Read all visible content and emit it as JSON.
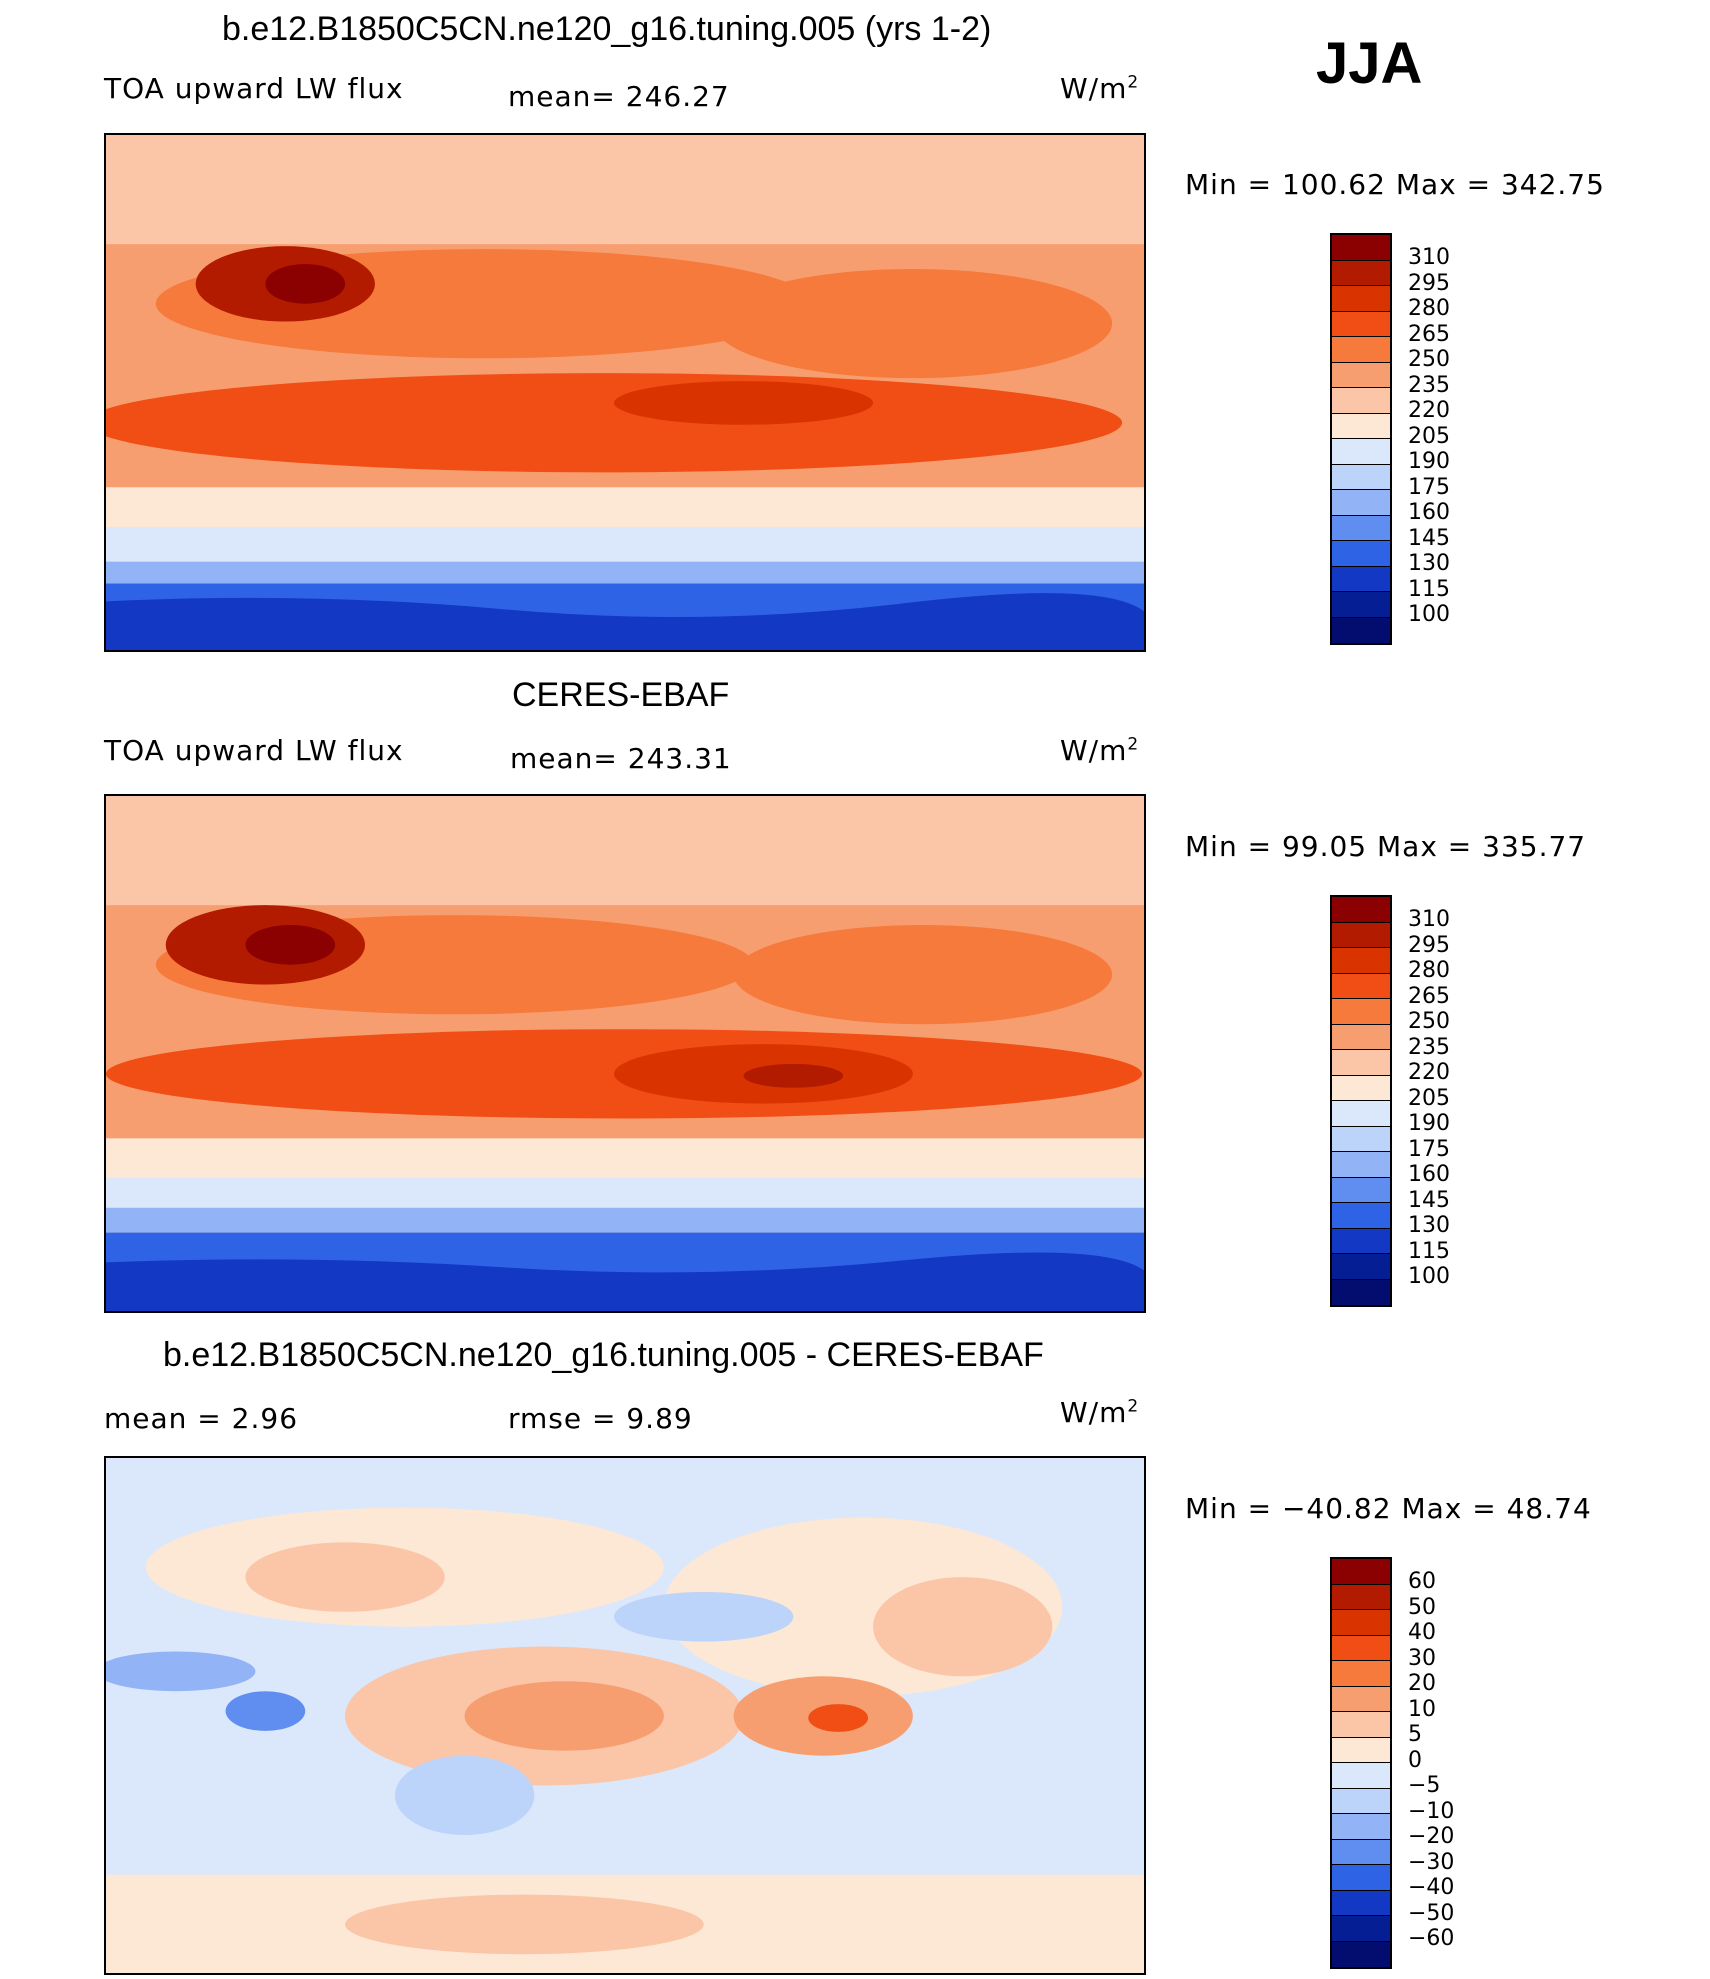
{
  "season": "JJA",
  "panels": [
    {
      "title": "b.e12.B1850C5CN.ne120_g16.tuning.005 (yrs 1-2)",
      "left_label": "TOA upward LW flux",
      "center_label": "mean= 246.27",
      "unit_label": "W/m",
      "unit_sup": "2",
      "minmax": "Min  =  100.62  Max  =  342.75",
      "colorbar": {
        "ticks": [
          "310",
          "295",
          "280",
          "265",
          "250",
          "235",
          "220",
          "205",
          "190",
          "175",
          "160",
          "145",
          "130",
          "115",
          "100"
        ],
        "colors": [
          "#8b0000",
          "#b31b00",
          "#d93400",
          "#f04e14",
          "#f57a3c",
          "#f79e70",
          "#fbc5a8",
          "#fde7d5",
          "#dbe8fb",
          "#bcd3fa",
          "#92b3f5",
          "#5f8df0",
          "#2f63e6",
          "#1338c4",
          "#061e94",
          "#030d70"
        ]
      }
    },
    {
      "title": "CERES-EBAF",
      "left_label": "TOA upward LW flux",
      "center_label": "mean= 243.31",
      "unit_label": "W/m",
      "unit_sup": "2",
      "minmax": "Min  =   99.05  Max  =  335.77",
      "colorbar": {
        "ticks": [
          "310",
          "295",
          "280",
          "265",
          "250",
          "235",
          "220",
          "205",
          "190",
          "175",
          "160",
          "145",
          "130",
          "115",
          "100"
        ],
        "colors": [
          "#8b0000",
          "#b31b00",
          "#d93400",
          "#f04e14",
          "#f57a3c",
          "#f79e70",
          "#fbc5a8",
          "#fde7d5",
          "#dbe8fb",
          "#bcd3fa",
          "#92b3f5",
          "#5f8df0",
          "#2f63e6",
          "#1338c4",
          "#061e94",
          "#030d70"
        ]
      }
    },
    {
      "title": "b.e12.B1850C5CN.ne120_g16.tuning.005 - CERES-EBAF",
      "left_label": "mean =     2.96",
      "center_label": "rmse =     9.89",
      "unit_label": "W/m",
      "unit_sup": "2",
      "minmax": "Min  = −40.82  Max  =    48.74",
      "colorbar": {
        "ticks": [
          "60",
          "50",
          "40",
          "30",
          "20",
          "10",
          "5",
          "0",
          "−5",
          "−10",
          "−20",
          "−30",
          "−40",
          "−50",
          "−60"
        ],
        "colors": [
          "#8b0000",
          "#b31b00",
          "#d93400",
          "#f04e14",
          "#f57a3c",
          "#f79e70",
          "#fbc5a8",
          "#fde7d5",
          "#dbe8fb",
          "#bcd3fa",
          "#92b3f5",
          "#5f8df0",
          "#2f63e6",
          "#1338c4",
          "#061e94",
          "#030d70"
        ]
      }
    }
  ]
}
